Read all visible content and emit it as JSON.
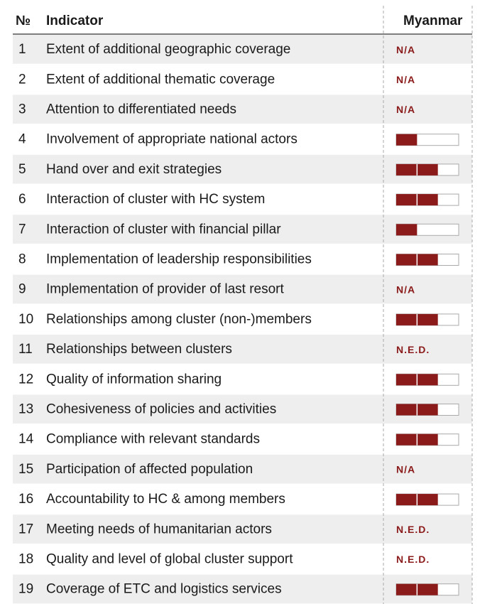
{
  "header": {
    "number": "№",
    "indicator": "Indicator",
    "country": "Myanmar"
  },
  "rating_max": 3,
  "rows": [
    [
      1,
      "Extent of additional geographic coverage",
      "N/A"
    ],
    [
      2,
      "Extent of additional thematic coverage",
      "N/A"
    ],
    [
      3,
      "Attention to differentiated needs",
      "N/A"
    ],
    [
      4,
      "Involvement of appropriate national actors",
      1
    ],
    [
      5,
      "Hand over and exit strategies",
      2
    ],
    [
      6,
      "Interaction of cluster with HC system",
      2
    ],
    [
      7,
      "Interaction of cluster with financial pillar",
      1
    ],
    [
      8,
      "Implementation of leadership responsibilities",
      2
    ],
    [
      9,
      "Implementation of provider of last resort",
      "N/A"
    ],
    [
      10,
      "Relationships among cluster (non-)members",
      2
    ],
    [
      11,
      "Relationships between clusters",
      "N.E.D."
    ],
    [
      12,
      "Quality of information sharing",
      2
    ],
    [
      13,
      "Cohesiveness of policies and activities",
      2
    ],
    [
      14,
      "Compliance with relevant standards",
      2
    ],
    [
      15,
      "Participation of affected population",
      "N/A"
    ],
    [
      16,
      "Accountability to HC & among members",
      2
    ],
    [
      17,
      "Meeting needs of humanitarian actors",
      "N.E.D."
    ],
    [
      18,
      "Quality and level of global cluster support",
      "N.E.D."
    ],
    [
      19,
      "Coverage of ETC and logistics services",
      2
    ]
  ]
}
